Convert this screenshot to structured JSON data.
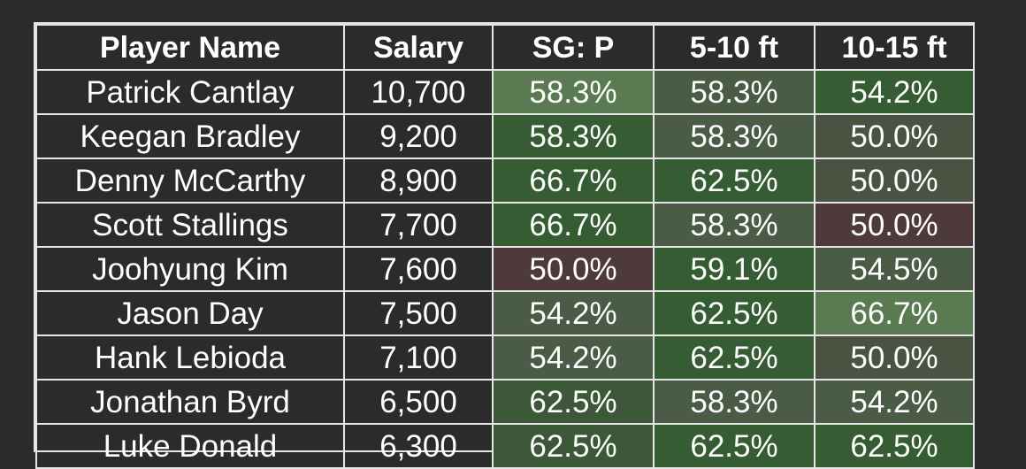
{
  "chart_data": {
    "type": "table",
    "columns": [
      "Player Name",
      "Salary",
      "SG: P",
      "5-10 ft",
      "10-15 ft"
    ],
    "rows": [
      {
        "player": "Patrick Cantlay",
        "salary": "10,700",
        "sg_p": "58.3%",
        "ft_5_10": "58.3%",
        "ft_10_15": "54.2%"
      },
      {
        "player": "Keegan Bradley",
        "salary": "9,200",
        "sg_p": "58.3%",
        "ft_5_10": "58.3%",
        "ft_10_15": "50.0%"
      },
      {
        "player": "Denny McCarthy",
        "salary": "8,900",
        "sg_p": "66.7%",
        "ft_5_10": "62.5%",
        "ft_10_15": "50.0%"
      },
      {
        "player": "Scott Stallings",
        "salary": "7,700",
        "sg_p": "66.7%",
        "ft_5_10": "58.3%",
        "ft_10_15": "50.0%"
      },
      {
        "player": "Joohyung Kim",
        "salary": "7,600",
        "sg_p": "50.0%",
        "ft_5_10": "59.1%",
        "ft_10_15": "54.5%"
      },
      {
        "player": "Jason Day",
        "salary": "7,500",
        "sg_p": "54.2%",
        "ft_5_10": "62.5%",
        "ft_10_15": "66.7%"
      },
      {
        "player": "Hank Lebioda",
        "salary": "7,100",
        "sg_p": "54.2%",
        "ft_5_10": "62.5%",
        "ft_10_15": "50.0%"
      },
      {
        "player": "Jonathan Byrd",
        "salary": "6,500",
        "sg_p": "62.5%",
        "ft_5_10": "58.3%",
        "ft_10_15": "54.2%"
      },
      {
        "player": "Luke Donald",
        "salary": "6,300",
        "sg_p": "62.5%",
        "ft_5_10": "62.5%",
        "ft_10_15": "62.5%"
      }
    ],
    "cell_colors": [
      [
        "#5a7a52",
        "#4a5c45",
        "#355c32"
      ],
      [
        "#355c32",
        "#4a5c45",
        "#4a5242"
      ],
      [
        "#355c32",
        "#355c32",
        "#4a5242"
      ],
      [
        "#355c32",
        "#4a5c45",
        "#4e3a3b"
      ],
      [
        "#4e3a3b",
        "#355c32",
        "#4a5c45"
      ],
      [
        "#4a5c45",
        "#355c32",
        "#5a7a52"
      ],
      [
        "#4a5c45",
        "#355c32",
        "#4a5242"
      ],
      [
        "#3d5838",
        "#4a5c45",
        "#4a5c45"
      ],
      [
        "#3d5838",
        "#355c32",
        "#355c32"
      ]
    ]
  }
}
